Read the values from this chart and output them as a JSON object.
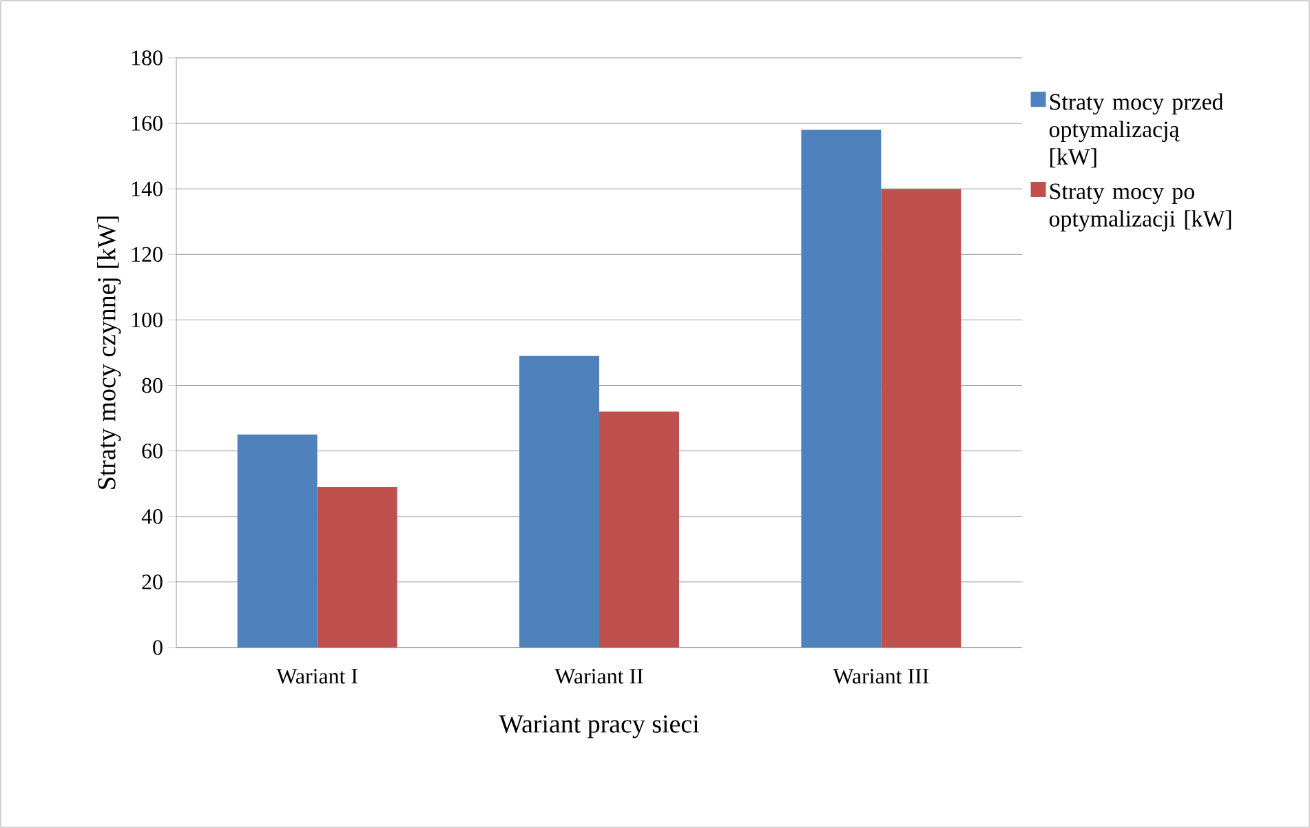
{
  "chart_data": {
    "type": "bar",
    "xlabel": "Wariant pracy sieci",
    "ylabel": "Straty mocy czynnej [kW]",
    "categories": [
      "Wariant I",
      "Wariant II",
      "Wariant III"
    ],
    "series": [
      {
        "name": "Straty mocy przed optymalizacją [kW]",
        "color": "#4f81bd",
        "values": [
          65,
          89,
          158
        ]
      },
      {
        "name": "Straty mocy po optymalizacji [kW]",
        "color": "#c0504d",
        "values": [
          49,
          72,
          140
        ]
      }
    ],
    "ylim": [
      0,
      180
    ],
    "yticks": [
      0,
      20,
      40,
      60,
      80,
      100,
      120,
      140,
      160,
      180
    ],
    "grid": "y",
    "legend": "right"
  }
}
